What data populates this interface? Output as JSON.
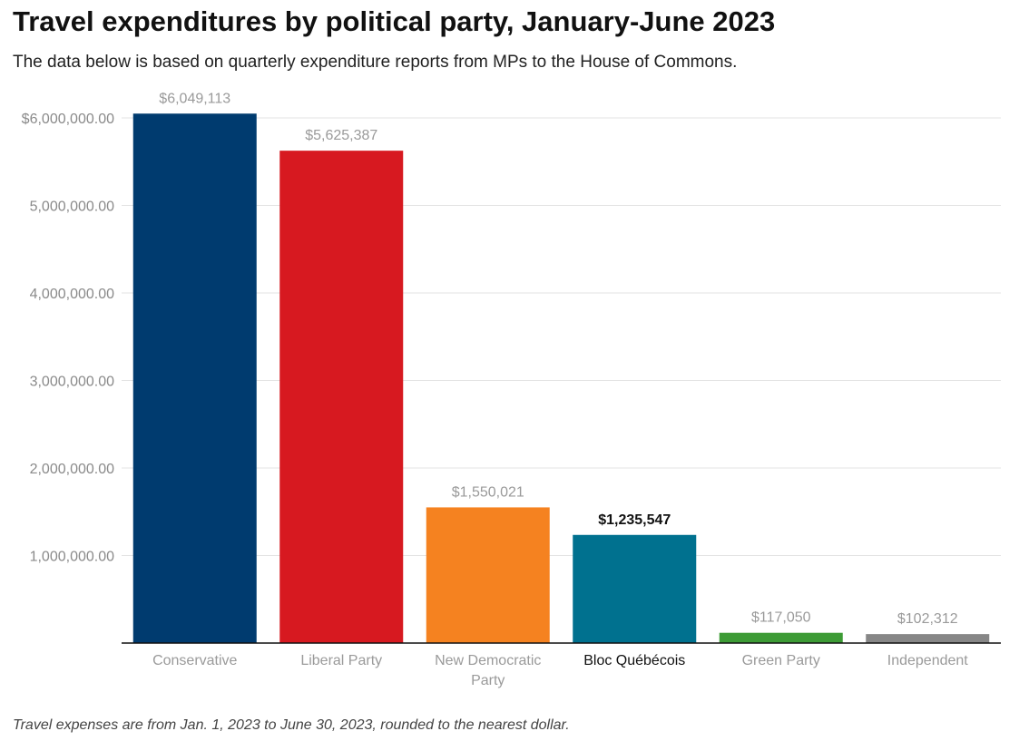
{
  "title": "Travel expenditures by political party, January-June 2023",
  "subtitle": "The data below is based on quarterly expenditure reports from MPs to the House of Commons.",
  "footnote": "Travel expenses are from Jan. 1, 2023 to June 30, 2023, rounded to the nearest dollar.",
  "chart_data": {
    "type": "bar",
    "title": "Travel expenditures by political party, January-June 2023",
    "xlabel": "",
    "ylabel": "",
    "categories": [
      "Conservative",
      "Liberal Party",
      "New Democratic Party",
      "Bloc Québécois",
      "Green Party",
      "Independent"
    ],
    "category_lines": [
      [
        "Conservative"
      ],
      [
        "Liberal Party"
      ],
      [
        "New Democratic",
        "Party"
      ],
      [
        "Bloc Québécois"
      ],
      [
        "Green Party"
      ],
      [
        "Independent"
      ]
    ],
    "values": [
      6049113,
      5625387,
      1550021,
      1235547,
      117050,
      102312
    ],
    "value_labels": [
      "$6,049,113",
      "$5,625,387",
      "$1,550,021",
      "$1,235,547",
      "$117,050",
      "$102,312"
    ],
    "colors": [
      "#003b6f",
      "#d71920",
      "#f58220",
      "#00718f",
      "#3d9b35",
      "#878787"
    ],
    "highlight_index": 3,
    "ylim": [
      0,
      6000000
    ],
    "yticks": [
      1000000,
      2000000,
      3000000,
      4000000,
      5000000,
      6000000
    ],
    "ytick_labels": [
      "1,000,000.00",
      "2,000,000.00",
      "3,000,000.00",
      "4,000,000.00",
      "5,000,000.00",
      "$6,000,000.00"
    ],
    "grid": true,
    "legend": "none"
  }
}
